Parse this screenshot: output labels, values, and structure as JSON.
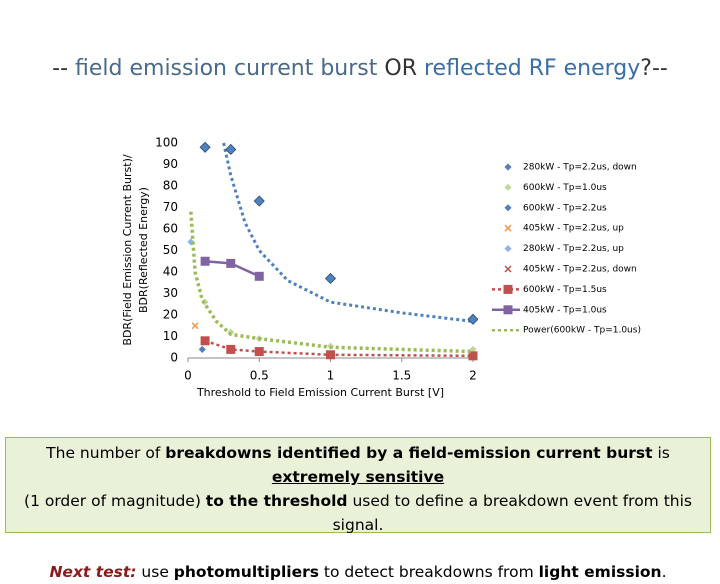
{
  "slide_title": [
    {
      "text": "-- ",
      "color": "#333333"
    },
    {
      "text": "field emission current burst",
      "color": "#4a6a8a"
    },
    {
      "text": " OR ",
      "color": "#333333"
    },
    {
      "text": "reflected RF energy",
      "color": "#3a6ea5"
    },
    {
      "text": "?--",
      "color": "#333333"
    }
  ],
  "chart_data": {
    "type": "scatter",
    "x_label": "Threshold to Field Emission Current Burst [V]",
    "y_label": [
      "BDR(Field Emission Current Burst)/",
      "BDR(Reflected Energy)"
    ],
    "xlim": [
      0,
      2
    ],
    "xticks": [
      0,
      0.5,
      1,
      1.5,
      2
    ],
    "ylim": [
      0,
      100
    ],
    "yticks": [
      0,
      10,
      20,
      30,
      40,
      50,
      60,
      70,
      80,
      90,
      100
    ],
    "grid": false,
    "legend": "right",
    "series": [
      {
        "name": "280kW - Tp=2.2us, down",
        "color": "#4f81bd",
        "marker": "diamond-small",
        "x": [
          0.1
        ],
        "values": [
          4
        ]
      },
      {
        "name": "600kW - Tp=1.0us",
        "color": "#c3d69b",
        "marker": "diamond-small",
        "x": [
          0.12,
          0.3,
          0.5,
          1.0,
          2.0
        ],
        "values": [
          26,
          12,
          9,
          5.5,
          4
        ]
      },
      {
        "name": "600kW - Tp=2.2us",
        "color": "#4f81bd",
        "marker": "diamond",
        "x": [
          0.12,
          0.3,
          0.5,
          1.0,
          2.0
        ],
        "values": [
          98,
          97,
          73,
          37,
          18
        ],
        "trend": {
          "color": "#4f81bd",
          "x": [
            0.25,
            0.3,
            0.4,
            0.5,
            0.7,
            1.0,
            1.5,
            2.0
          ],
          "values": [
            100,
            85,
            63,
            50,
            36,
            26,
            21,
            17
          ]
        }
      },
      {
        "name": "405kW - Tp=2.2us, up",
        "color": "#f79646",
        "marker": "cross",
        "x": [
          0.05
        ],
        "values": [
          15
        ]
      },
      {
        "name": "280kW - Tp=2.2us, up",
        "color": "#8eb4e3",
        "marker": "diamond-small",
        "x": [
          0.02
        ],
        "values": [
          54
        ]
      },
      {
        "name": "405kW - Tp=2.2us, down",
        "color": "#c0504d",
        "marker": "cross",
        "x": [],
        "values": []
      },
      {
        "name": "600kW - Tp=1.5us",
        "color": "#c0504d",
        "marker": "square",
        "line": "dotted",
        "x": [
          0.12,
          0.3,
          0.5,
          1.0,
          2.0
        ],
        "values": [
          8,
          4,
          3,
          1.5,
          1
        ]
      },
      {
        "name": "405kW - Tp=1.0us",
        "color": "#8064a2",
        "marker": "square",
        "line": "solid",
        "x": [
          0.12,
          0.3,
          0.5
        ],
        "values": [
          45,
          44,
          38
        ]
      },
      {
        "name": "Power(600kW - Tp=1.0us)",
        "color": "#9bbb59",
        "marker": "none",
        "line": "dotted",
        "x": [
          0.02,
          0.05,
          0.1,
          0.2,
          0.3,
          0.5,
          1.0,
          1.5,
          2.0
        ],
        "values": [
          68,
          40,
          27,
          17,
          11,
          9,
          5,
          4,
          3
        ]
      }
    ]
  },
  "note": [
    [
      {
        "text": "The number of ",
        "style": "plain"
      },
      {
        "text": "breakdowns identified by a field-emission current burst",
        "style": "bold"
      },
      {
        "text": " is ",
        "style": "plain"
      },
      {
        "text": "extremely sensitive",
        "style": "bold-underline"
      }
    ],
    [
      {
        "text": "(1 order of magnitude) ",
        "style": "plain"
      },
      {
        "text": "to the threshold",
        "style": "bold"
      },
      {
        "text": " used to define a breakdown event from this signal.",
        "style": "plain"
      }
    ],
    [
      {
        "text": "Next test:",
        "style": "italic-accent"
      },
      {
        "text": " use ",
        "style": "plain"
      },
      {
        "text": "photomultipliers",
        "style": "bold"
      },
      {
        "text": " to detect breakdowns from ",
        "style": "plain"
      },
      {
        "text": "light emission",
        "style": "bold"
      },
      {
        "text": ".",
        "style": "plain"
      }
    ]
  ]
}
